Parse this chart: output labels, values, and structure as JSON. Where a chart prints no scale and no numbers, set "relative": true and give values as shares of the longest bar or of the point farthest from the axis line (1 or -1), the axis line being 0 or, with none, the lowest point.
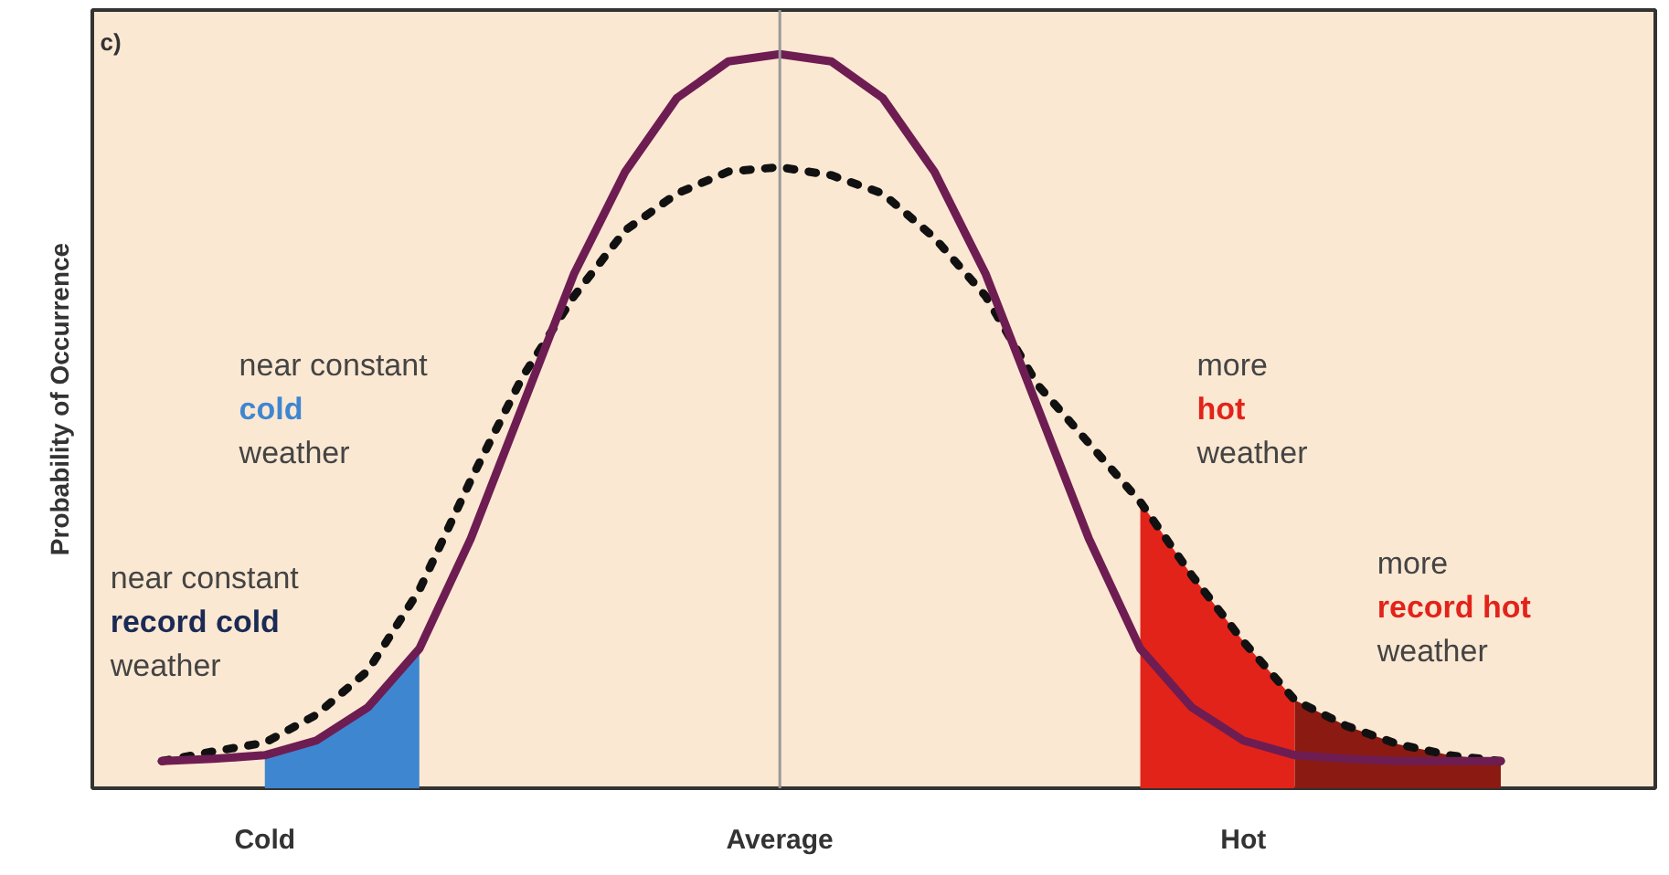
{
  "chart_data": {
    "type": "line",
    "relative": true,
    "ylabel": "Probability of Occurrence",
    "categories": [
      null,
      null,
      "Cold",
      null,
      null,
      null,
      null,
      null,
      null,
      null,
      null,
      null,
      "Average",
      null,
      null,
      null,
      null,
      null,
      null,
      null,
      null,
      "Hot",
      null,
      null,
      null,
      null,
      null
    ],
    "tick_labels": "x",
    "grid": false,
    "marker": "none",
    "series": [
      {
        "type": "area",
        "color": "#3f86d0",
        "values": [
          null,
          null,
          0.045,
          0.065,
          0.11,
          0.19,
          null,
          null,
          null,
          null,
          null,
          null,
          null,
          null,
          null,
          null,
          null,
          null,
          null,
          null,
          null,
          null,
          null,
          null,
          null,
          null,
          null
        ]
      },
      {
        "type": "area",
        "color": "#e2231a",
        "values": [
          null,
          null,
          null,
          null,
          null,
          null,
          null,
          null,
          null,
          null,
          null,
          null,
          null,
          null,
          null,
          null,
          null,
          null,
          null,
          0.39,
          0.29,
          0.2,
          0.12,
          null,
          null,
          null,
          null
        ]
      },
      {
        "type": "area",
        "color": "#8b1a12",
        "values": [
          null,
          null,
          null,
          null,
          null,
          null,
          null,
          null,
          null,
          null,
          null,
          null,
          null,
          null,
          null,
          null,
          null,
          null,
          null,
          null,
          null,
          null,
          0.12,
          0.085,
          0.06,
          0.045,
          0.037
        ]
      },
      {
        "line_style": "dashed",
        "color": "#111111",
        "values": [
          0.037,
          0.05,
          0.062,
          0.1,
          0.16,
          0.27,
          0.42,
          0.56,
          0.67,
          0.76,
          0.81,
          0.84,
          0.846,
          0.835,
          0.81,
          0.75,
          0.67,
          0.55,
          0.47,
          0.39,
          0.29,
          0.2,
          0.12,
          0.085,
          0.06,
          0.045,
          0.037
        ]
      },
      {
        "line_style": "solid",
        "color": "#6e1d52",
        "values": [
          0.037,
          0.04,
          0.045,
          0.065,
          0.11,
          0.19,
          0.34,
          0.52,
          0.7,
          0.84,
          0.94,
          0.99,
          1.0,
          0.99,
          0.94,
          0.84,
          0.7,
          0.52,
          0.34,
          0.19,
          0.11,
          0.065,
          0.045,
          0.04,
          0.037,
          0.037,
          0.037
        ]
      }
    ],
    "ref_lines": [
      {
        "axis": "x",
        "value": "Average",
        "color": "#999999"
      }
    ],
    "annotations": [
      "c)",
      "near constant\ncold\nweather",
      "near constant\nrecord cold\nweather",
      "more\nhot\nweather",
      "more\nrecord hot\nweather"
    ]
  }
}
